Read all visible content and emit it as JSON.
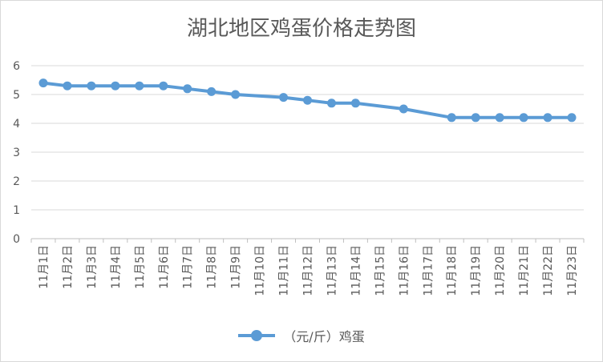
{
  "chart_data": {
    "type": "line",
    "title": "湖北地区鸡蛋价格走势图",
    "categories": [
      "11月1日",
      "11月2日",
      "11月3日",
      "11月4日",
      "11月5日",
      "11月6日",
      "11月7日",
      "11月8日",
      "11月9日",
      "11月10日",
      "11月11日",
      "11月12日",
      "11月13日",
      "11月14日",
      "11月15日",
      "11月16日",
      "11月17日",
      "11月18日",
      "11月19日",
      "11月20日",
      "11月21日",
      "11月22日",
      "11月23日"
    ],
    "series": [
      {
        "name": "（元/斤）鸡蛋",
        "color": "#5b9bd5",
        "values": [
          5.4,
          5.3,
          5.3,
          5.3,
          5.3,
          5.3,
          5.2,
          5.1,
          5.0,
          null,
          4.9,
          4.8,
          4.7,
          4.7,
          null,
          4.5,
          null,
          4.2,
          4.2,
          4.2,
          4.2,
          4.2,
          4.2
        ]
      }
    ],
    "ylim": [
      0,
      6
    ],
    "yticks": [
      "0",
      "1",
      "2",
      "3",
      "4",
      "5",
      "6"
    ],
    "grid": true,
    "legend_position": "bottom"
  }
}
